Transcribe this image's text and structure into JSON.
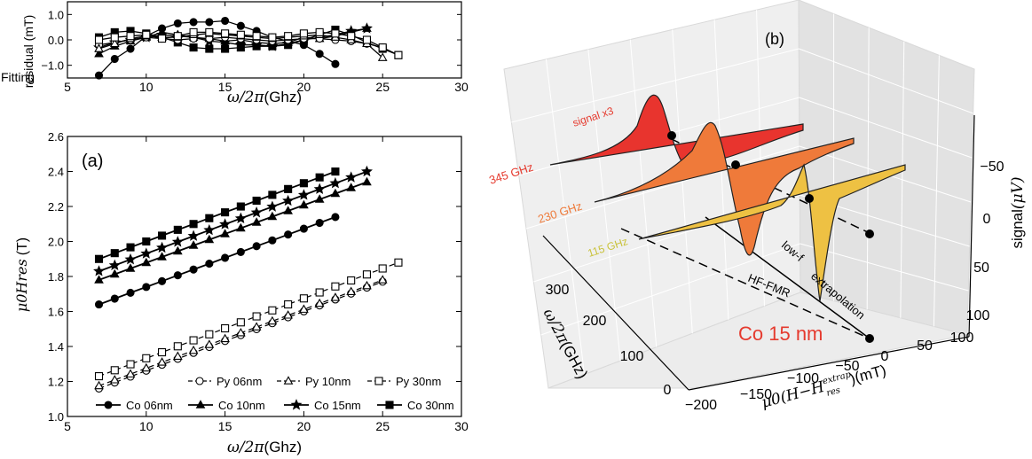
{
  "chart_data": [
    {
      "type": "line",
      "panel": "residual",
      "xlabel_math": "ω/2π",
      "xlabel_unit": "(Ghz)",
      "ylabel_line1": "Fitting",
      "ylabel_line2": "residual",
      "ylabel_unit": "(mT)",
      "xlim": [
        5,
        30
      ],
      "ylim": [
        -1.5,
        1.5
      ],
      "xticks": [
        "5",
        "10",
        "15",
        "20",
        "25",
        "30"
      ],
      "yticks": [
        "1.0",
        "0.0",
        "−1.0"
      ],
      "ytick_values": [
        1.0,
        0.0,
        -1.0
      ],
      "series": [
        {
          "name": "Co 06nm",
          "marker": "circle",
          "filled": true,
          "x": [
            7,
            8,
            9,
            10,
            11,
            12,
            13,
            14,
            15,
            16,
            17,
            18,
            19,
            20,
            21,
            22
          ],
          "y": [
            -1.4,
            -0.75,
            -0.35,
            0.15,
            0.45,
            0.65,
            0.7,
            0.7,
            0.75,
            0.55,
            0.35,
            0.1,
            -0.05,
            -0.2,
            -0.55,
            -0.95
          ]
        },
        {
          "name": "Co 10nm",
          "marker": "triangle",
          "filled": true,
          "x": [
            7,
            8,
            9,
            10,
            11,
            12,
            13,
            14,
            15,
            16,
            17,
            18,
            19,
            20,
            21,
            22,
            23,
            24
          ],
          "y": [
            -0.55,
            -0.25,
            -0.05,
            0.1,
            0.3,
            0.2,
            0.1,
            0.05,
            -0.05,
            0.0,
            -0.1,
            -0.15,
            -0.1,
            0.1,
            0.05,
            0.15,
            0.3,
            0.45
          ]
        },
        {
          "name": "Co 15nm",
          "marker": "star",
          "filled": true,
          "x": [
            7,
            8,
            9,
            10,
            11,
            12,
            13,
            14,
            15,
            16,
            17,
            18,
            19,
            20,
            21,
            22,
            23,
            24
          ],
          "y": [
            -0.3,
            -0.1,
            0.0,
            0.1,
            0.2,
            0.15,
            0.1,
            -0.05,
            -0.1,
            -0.2,
            -0.2,
            -0.25,
            -0.15,
            0.0,
            0.1,
            0.2,
            0.35,
            0.45
          ]
        },
        {
          "name": "Co 30nm",
          "marker": "square",
          "filled": true,
          "x": [
            7,
            8,
            9,
            10,
            11,
            12,
            13,
            14,
            15,
            16,
            17,
            18,
            19,
            20,
            21,
            22,
            23,
            24,
            25,
            26
          ],
          "y": [
            0.1,
            0.3,
            0.35,
            0.25,
            0.1,
            -0.1,
            -0.3,
            -0.35,
            -0.35,
            -0.3,
            -0.25,
            -0.25,
            -0.2,
            0.0,
            0.2,
            0.4,
            0.2,
            -0.1,
            -0.35,
            -0.6
          ]
        },
        {
          "name": "Py 06nm",
          "marker": "circle",
          "filled": false,
          "x": [
            7,
            8,
            9,
            10,
            11,
            12,
            13,
            14,
            15,
            16,
            17,
            18,
            19,
            20,
            21,
            22,
            23,
            24,
            25
          ],
          "y": [
            -0.2,
            -0.1,
            0.0,
            0.1,
            0.05,
            0.0,
            0.05,
            0.05,
            0.1,
            0.05,
            0.0,
            -0.05,
            0.0,
            0.05,
            0.05,
            0.0,
            -0.05,
            -0.15,
            -0.3
          ]
        },
        {
          "name": "Py 10nm",
          "marker": "triangle",
          "filled": false,
          "x": [
            7,
            8,
            9,
            10,
            11,
            12,
            13,
            14,
            15,
            16,
            17,
            18,
            19,
            20,
            21,
            22,
            23,
            24,
            25
          ],
          "y": [
            -0.35,
            -0.15,
            0.05,
            0.15,
            0.1,
            0.1,
            0.2,
            0.25,
            0.2,
            0.15,
            0.1,
            0.05,
            0.1,
            0.15,
            0.2,
            0.1,
            0.0,
            -0.15,
            -0.7
          ]
        },
        {
          "name": "Py 30nm",
          "marker": "square",
          "filled": false,
          "x": [
            7,
            8,
            9,
            10,
            11,
            12,
            13,
            14,
            15,
            16,
            17,
            18,
            19,
            20,
            21,
            22,
            23,
            24,
            25,
            26
          ],
          "y": [
            0.0,
            0.1,
            0.15,
            0.2,
            0.05,
            0.15,
            0.3,
            0.3,
            0.25,
            0.2,
            0.15,
            0.1,
            0.15,
            0.25,
            0.3,
            0.25,
            0.15,
            0.0,
            -0.3,
            -0.6
          ]
        }
      ]
    },
    {
      "type": "line",
      "panel": "(a)",
      "xlabel_math": "ω/2π",
      "xlabel_unit": "(Ghz)",
      "ylabel_math": "μ0Hres",
      "ylabel_unit": "(T)",
      "xlim": [
        5,
        30
      ],
      "ylim": [
        1.0,
        2.6
      ],
      "xticks": [
        "5",
        "10",
        "15",
        "20",
        "25",
        "30"
      ],
      "yticks": [
        "1.0",
        "1.2",
        "1.4",
        "1.6",
        "1.8",
        "2.0",
        "2.2",
        "2.4",
        "2.6"
      ],
      "legend_position": "lower-right",
      "legend_rows": [
        [
          "Py 06nm",
          "Py 10nm",
          "Py 30nm"
        ],
        [
          "Co 06nm",
          "Co 10nm",
          "Co 15nm",
          "Co 30nm"
        ]
      ],
      "series": [
        {
          "name": "Co 06nm",
          "marker": "circle",
          "filled": true,
          "dashed": false,
          "x_start": 7,
          "x_end": 22,
          "y0": 1.64,
          "slope": 0.0333
        },
        {
          "name": "Co 10nm",
          "marker": "triangle",
          "filled": true,
          "dashed": false,
          "x_start": 7,
          "x_end": 24,
          "y0": 1.78,
          "slope": 0.0329
        },
        {
          "name": "Co 15nm",
          "marker": "star",
          "filled": true,
          "dashed": false,
          "x_start": 7,
          "x_end": 24,
          "y0": 1.83,
          "slope": 0.0335
        },
        {
          "name": "Co 30nm",
          "marker": "square",
          "filled": true,
          "dashed": false,
          "x_start": 7,
          "x_end": 22,
          "y0": 1.9,
          "slope": 0.0333
        },
        {
          "name": "Py 06nm",
          "marker": "circle",
          "filled": false,
          "dashed": true,
          "x_start": 7,
          "x_end": 25,
          "y0": 1.16,
          "slope": 0.0339
        },
        {
          "name": "Py 10nm",
          "marker": "triangle",
          "filled": false,
          "dashed": true,
          "x_start": 7,
          "x_end": 25,
          "y0": 1.175,
          "slope": 0.0336
        },
        {
          "name": "Py 30nm",
          "marker": "square",
          "filled": false,
          "dashed": true,
          "x_start": 7,
          "x_end": 26,
          "y0": 1.23,
          "slope": 0.0342
        }
      ]
    },
    {
      "type": "3d-waterfall",
      "panel": "(b)",
      "xlabel_math": "μ0(H−H",
      "xlabel_sup": "extrap",
      "xlabel_sub": "res",
      "xlabel_tail": ")(mT)",
      "ylabel_math": "ω/2π",
      "ylabel_unit": "(GHz)",
      "zlabel_text": "signal",
      "zlabel_math": "(μV)",
      "xticks": [
        "−200",
        "−150",
        "−100",
        "−50",
        "0",
        "50",
        "100"
      ],
      "yticks": [
        "0",
        "100",
        "200",
        "300"
      ],
      "zticks": [
        "−50",
        "0",
        "50",
        "100"
      ],
      "traces": [
        {
          "label": "345 GHz",
          "frequency_GHz": 345,
          "color": "#e8342e"
        },
        {
          "label": "230 GHz",
          "frequency_GHz": 230,
          "color": "#ef7a3a"
        },
        {
          "label": "115 GHz",
          "frequency_GHz": 115,
          "color": "#eec143"
        }
      ],
      "annotations": {
        "scale_note": "signal x3",
        "line_a_top": "low-f",
        "line_a_bottom": "extrapolation",
        "line_b": "HF-FMR",
        "sample": "Co 15 nm"
      },
      "colors": {
        "sample_label": "#e53a2e",
        "note": "#e53a2e",
        "label_345": "#e53a2e",
        "label_230": "#ee7a3a",
        "label_115": "#c9c23a"
      }
    }
  ]
}
